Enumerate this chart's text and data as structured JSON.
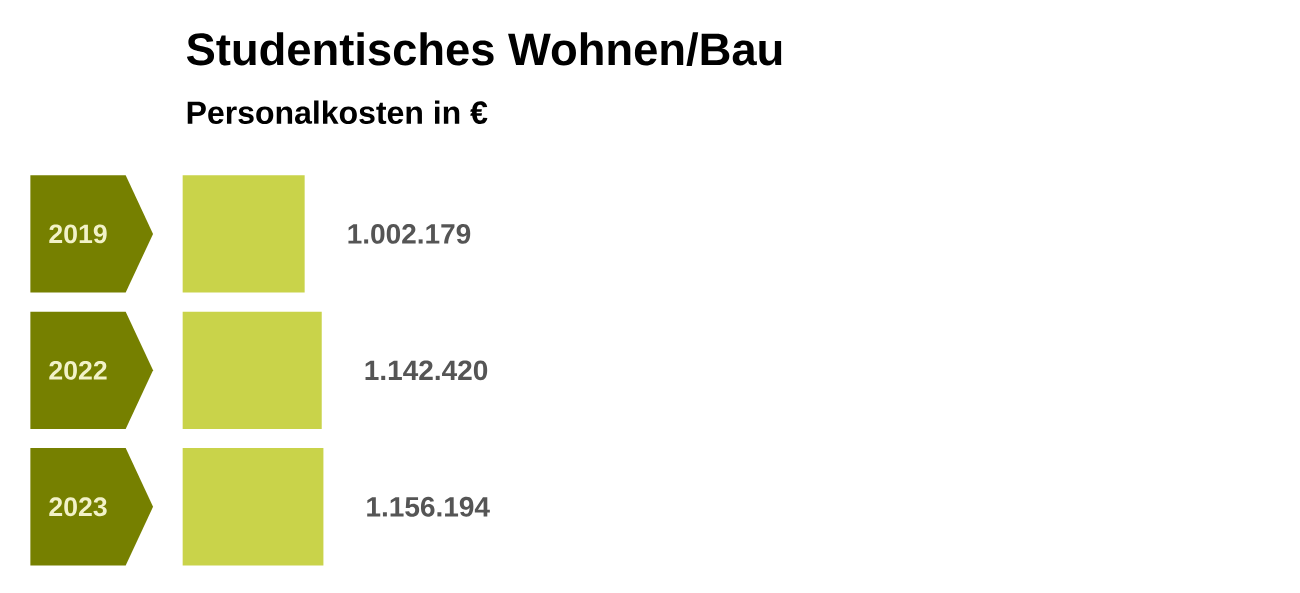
{
  "chart_data": {
    "type": "bar",
    "orientation": "horizontal",
    "title": "Studentisches Wohnen/Bau",
    "subtitle": "Personalkosten in €",
    "categories": [
      "2019",
      "2022",
      "2023"
    ],
    "values": [
      1002179,
      1142420,
      1156194
    ],
    "value_labels": [
      "1.002.179",
      "1.142.420",
      "1.156.194"
    ],
    "color": "#c9d34a",
    "tick_labels": "y"
  }
}
